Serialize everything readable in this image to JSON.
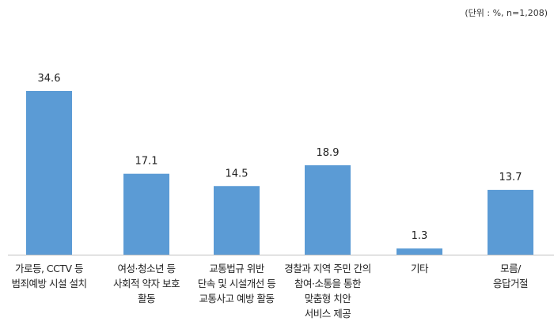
{
  "unit_note": "(단위 : %, n=1,208)",
  "chart_data": {
    "type": "bar",
    "categories": [
      [
        "가로등, CCTV 등",
        "범죄예방 시설 설치"
      ],
      [
        "여성·청소년 등",
        "사회적 약자 보호",
        "활동"
      ],
      [
        "교통법규 위반",
        "단속 및 시설개선 등",
        "교통사고 예방 활동"
      ],
      [
        "경찰과 지역 주민 간의",
        "참여·소통을 통한",
        "맞춤형 치안",
        "서비스 제공"
      ],
      [
        "기타"
      ],
      [
        "모름/",
        "응답거절"
      ]
    ],
    "values": [
      34.6,
      17.1,
      14.5,
      18.9,
      1.3,
      13.7
    ],
    "value_labels": [
      "34.6",
      "17.1",
      "14.5",
      "18.9",
      "1.3",
      "13.7"
    ],
    "ylim": [
      0,
      40
    ],
    "grid": false,
    "bar_color": "#5b9bd5"
  }
}
